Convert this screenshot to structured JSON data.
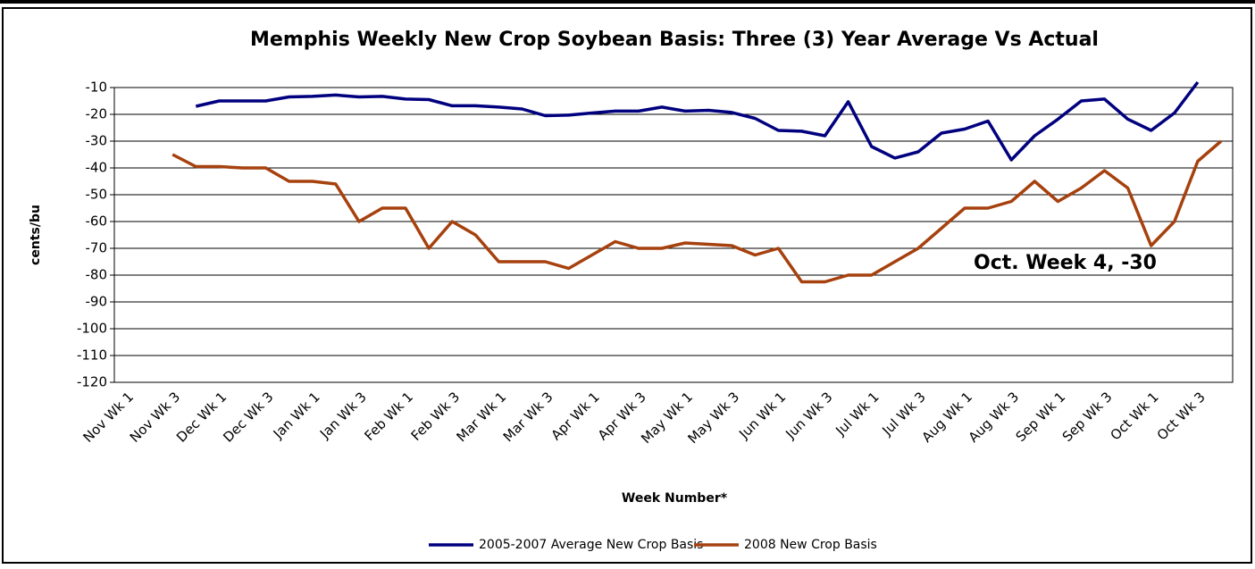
{
  "chart_data": {
    "type": "line",
    "title": "Memphis Weekly New Crop Soybean Basis: Three (3) Year Average Vs Actual",
    "y_label": "cents/bu",
    "x_label": "Week Number*",
    "annotation": "Oct. Week 4, -30",
    "categories": [
      "Nov Wk 1",
      null,
      "Nov Wk 3",
      null,
      "Dec Wk 1",
      null,
      "Dec Wk 3",
      null,
      "Jan Wk 1",
      null,
      "Jan Wk 3",
      null,
      "Feb Wk 1",
      null,
      "Feb Wk 3",
      null,
      "Mar Wk 1",
      null,
      "Mar Wk 3",
      null,
      "Apr Wk 1",
      null,
      "Apr Wk 3",
      null,
      "May Wk 1",
      null,
      "May Wk 3",
      null,
      "Jun Wk 1",
      null,
      "Jun Wk 3",
      null,
      "Jul Wk 1",
      null,
      "Jul Wk 3",
      null,
      "Aug Wk 1",
      null,
      "Aug Wk 3",
      null,
      "Sep Wk 1",
      null,
      "Sep Wk 3",
      null,
      "Oct Wk 1",
      null,
      "Oct Wk 3",
      null
    ],
    "series": [
      {
        "name": "2005-2007 Average New Crop Basis",
        "color": "#00007f",
        "values": [
          null,
          null,
          null,
          -17,
          -15,
          -15,
          -15,
          -13.5,
          -13.3,
          -12.8,
          -13.5,
          -13.3,
          -14.3,
          -14.5,
          -16.8,
          -16.8,
          -17.3,
          -18,
          -20.5,
          -20.3,
          -19.5,
          -18.8,
          -18.8,
          -17.3,
          -18.8,
          -18.5,
          -19.3,
          -21.5,
          -26,
          -26.3,
          -28,
          -15.3,
          -32,
          -36.3,
          -34,
          -27,
          -25.5,
          -22.5,
          -37,
          -28,
          -21.8,
          -15,
          -14.3,
          -21.8,
          -26,
          -19.5,
          -8,
          null
        ]
      },
      {
        "name": "2008 New Crop Basis",
        "color": "#a6410e",
        "values": [
          null,
          null,
          -35,
          -39.5,
          -39.5,
          -40,
          -40,
          -45,
          -45,
          -46,
          -60,
          -55,
          -55,
          -70,
          -60,
          -65,
          -75,
          -75,
          -75,
          -77.5,
          -72.5,
          -67.5,
          -70,
          -70,
          -68,
          -68.5,
          -69,
          -72.5,
          -70,
          -82.5,
          -82.5,
          -80,
          -80,
          -75,
          -70,
          -62.5,
          -55,
          -55,
          -52.5,
          -45,
          -52.5,
          -47.5,
          -41,
          -47.5,
          -69,
          -60,
          -37.5,
          -30
        ]
      }
    ],
    "ylim": [
      -120,
      -10
    ],
    "yticks": [
      -10,
      -20,
      -30,
      -40,
      -50,
      -60,
      -70,
      -80,
      -90,
      -100,
      -110,
      -120
    ],
    "grid": true,
    "legend": "bottom"
  }
}
